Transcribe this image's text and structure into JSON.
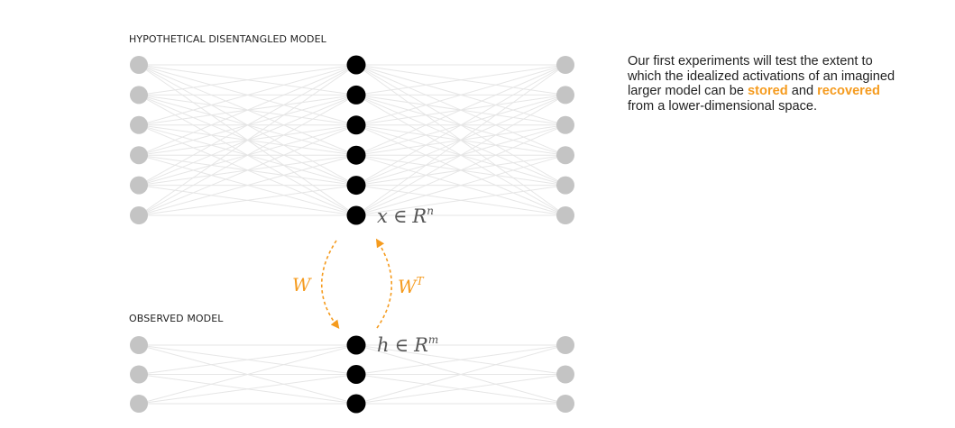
{
  "top_section": {
    "title": "HYPOTHETICAL DISENTANGLED MODEL",
    "left_node_count": 6,
    "middle_node_count": 6,
    "right_node_count": 6,
    "activation_var": "x",
    "elem_symbol": "∈",
    "space": "R",
    "dimension": "n"
  },
  "bottom_section": {
    "title": "OBSERVED MODEL",
    "left_node_count": 3,
    "middle_node_count": 3,
    "right_node_count": 3,
    "activation_var": "h",
    "elem_symbol": "∈",
    "space": "R",
    "dimension": "m"
  },
  "mapping": {
    "down_label": "W",
    "up_label_base": "W",
    "up_label_sup": "T"
  },
  "description": {
    "part1": "Our first experiments will test the extent to which the idealized activations of an imagined larger model can be ",
    "highlight1": "stored",
    "part2": " and ",
    "highlight2": "recovered",
    "part3": " from a lower-dimensional space."
  },
  "colors": {
    "outer_node": "#c4c4c4",
    "middle_node": "#000000",
    "edge": "#e6e6e6",
    "accent": "#f59b1e",
    "math_text": "#555555"
  }
}
